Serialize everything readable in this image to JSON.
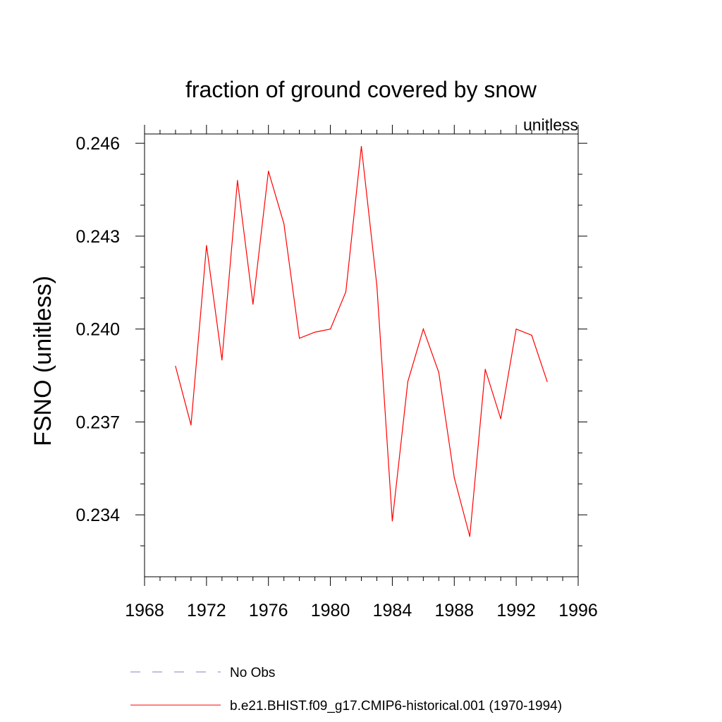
{
  "chart_data": {
    "type": "line",
    "title": "fraction of ground covered by snow",
    "units_label": "unitless",
    "xlabel": "",
    "ylabel": "FSNO  (unitless)",
    "xlim": [
      1968,
      1996
    ],
    "ylim": [
      0.232,
      0.2463
    ],
    "x_ticks": [
      1968,
      1972,
      1976,
      1980,
      1984,
      1988,
      1992,
      1996
    ],
    "y_ticks": [
      0.234,
      0.237,
      0.24,
      0.243,
      0.246
    ],
    "y_tick_labels": [
      "0.234",
      "0.237",
      "0.240",
      "0.243",
      "0.246"
    ],
    "series": [
      {
        "name": "b.e21.BHIST.f09_g17.CMIP6-historical.001 (1970-1994)",
        "color": "#ff0000",
        "style": "solid",
        "x": [
          1970,
          1971,
          1972,
          1973,
          1974,
          1975,
          1976,
          1977,
          1978,
          1979,
          1980,
          1981,
          1982,
          1983,
          1984,
          1985,
          1986,
          1987,
          1988,
          1989,
          1990,
          1991,
          1992,
          1993,
          1994
        ],
        "values": [
          0.2388,
          0.2369,
          0.2427,
          0.239,
          0.2448,
          0.2408,
          0.2451,
          0.2434,
          0.2397,
          0.2399,
          0.24,
          0.2412,
          0.2459,
          0.2414,
          0.2338,
          0.2383,
          0.24,
          0.2386,
          0.2352,
          0.2333,
          0.2387,
          0.2371,
          0.24,
          0.2398,
          0.2383
        ]
      }
    ],
    "legend": [
      {
        "label": "No Obs",
        "color": "#8080c0",
        "style": "dashed"
      },
      {
        "label": "b.e21.BHIST.f09_g17.CMIP6-historical.001 (1970-1994)",
        "color": "#ff0000",
        "style": "solid"
      }
    ]
  }
}
